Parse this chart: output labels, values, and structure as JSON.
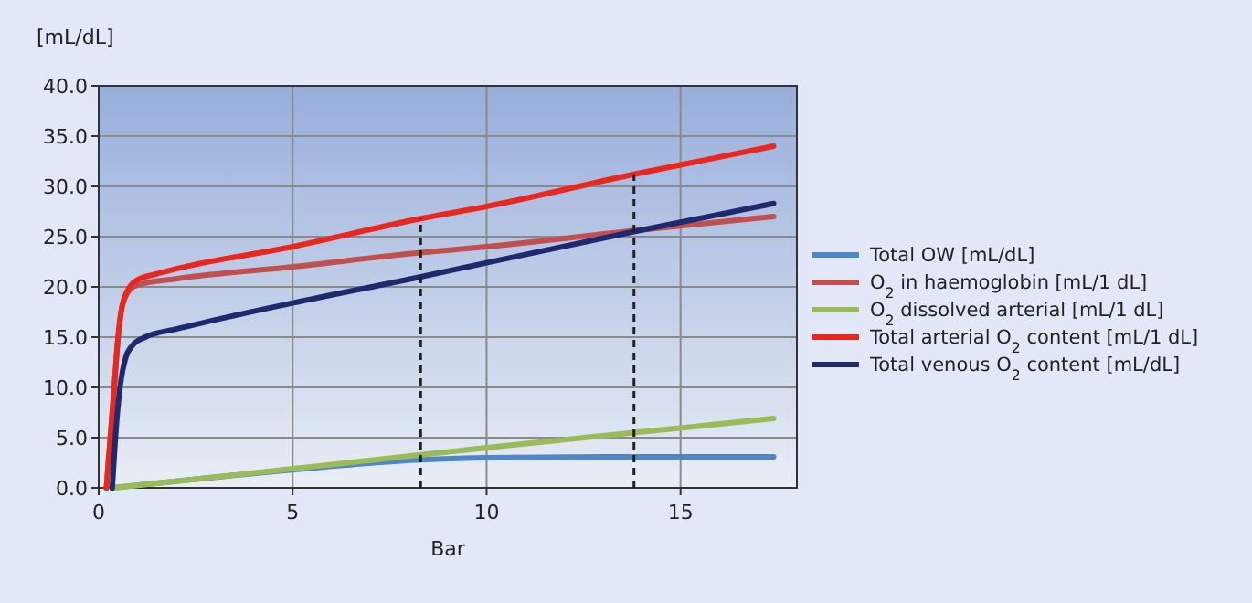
{
  "chart_data": {
    "type": "line",
    "ylabel": "[mL/dL]",
    "xlabel": "Bar",
    "xlim": [
      0,
      18
    ],
    "xticks": [
      0,
      5,
      10,
      15
    ],
    "ylim": [
      0,
      40
    ],
    "yticks": [
      {
        "value": 0,
        "label": "0.0"
      },
      {
        "value": 5,
        "label": "5.0"
      },
      {
        "value": 10,
        "label": "10.0"
      },
      {
        "value": 15,
        "label": "15.0"
      },
      {
        "value": 20,
        "label": "20.0"
      },
      {
        "value": 25,
        "label": "25.0"
      },
      {
        "value": 30,
        "label": "30.0"
      },
      {
        "value": 35,
        "label": "35.0"
      },
      {
        "value": 40,
        "label": "40.0"
      }
    ],
    "grid": true,
    "legend": "right",
    "marker": "none",
    "line_style": "solid",
    "series": [
      {
        "name": "Total OW [mL/dL]",
        "color": "#4f86c6",
        "x": [
          0.35,
          5,
          8.3,
          10,
          13.8,
          17.4
        ],
        "values": [
          0,
          1.8,
          2.8,
          3,
          3.1,
          3.1
        ]
      },
      {
        "name": "O$_{2}$ in haemoglobin [mL/1 dL]",
        "color": "#c0504d",
        "x": [
          0.2,
          0.4,
          0.5,
          0.6,
          0.8,
          1,
          2,
          5,
          8.3,
          10,
          13.8,
          17.4
        ],
        "values": [
          0,
          10,
          15,
          18,
          19.7,
          20.2,
          20.8,
          22,
          23.4,
          24,
          25.6,
          27
        ]
      },
      {
        "name": "O$_{2}$ dissolved arterial [mL/1 dL]",
        "color": "#9bbb59",
        "x": [
          0.4,
          5,
          8.3,
          10,
          13.8,
          17.4
        ],
        "values": [
          0,
          1.9,
          3.3,
          4,
          5.5,
          6.9
        ]
      },
      {
        "name": "Total arterial O$_{2}$ content [mL/1 dL]",
        "color": "#e8281e",
        "x": [
          0.2,
          0.4,
          0.5,
          0.6,
          0.8,
          1,
          1.5,
          2,
          5,
          8.3,
          10,
          13.8,
          17.4
        ],
        "values": [
          0,
          10,
          15,
          18,
          20,
          20.7,
          21.3,
          21.8,
          24,
          26.8,
          28,
          31.2,
          34
        ]
      },
      {
        "name": "Total venous O$_{2}$ content [mL/dL]",
        "color": "#1f2a6e",
        "x": [
          0.35,
          0.45,
          0.55,
          0.7,
          0.9,
          1.2,
          2,
          5,
          8.3,
          10,
          13.8,
          17.4
        ],
        "values": [
          0,
          6,
          10,
          13,
          14.3,
          15,
          15.8,
          18.4,
          21,
          22.4,
          25.5,
          28.3
        ]
      }
    ],
    "ref_lines": [
      {
        "axis": "x",
        "value": 8.3,
        "color": "#222222",
        "line_style": "dashed"
      },
      {
        "axis": "x",
        "value": 13.8,
        "color": "#222222",
        "line_style": "dashed"
      }
    ]
  }
}
